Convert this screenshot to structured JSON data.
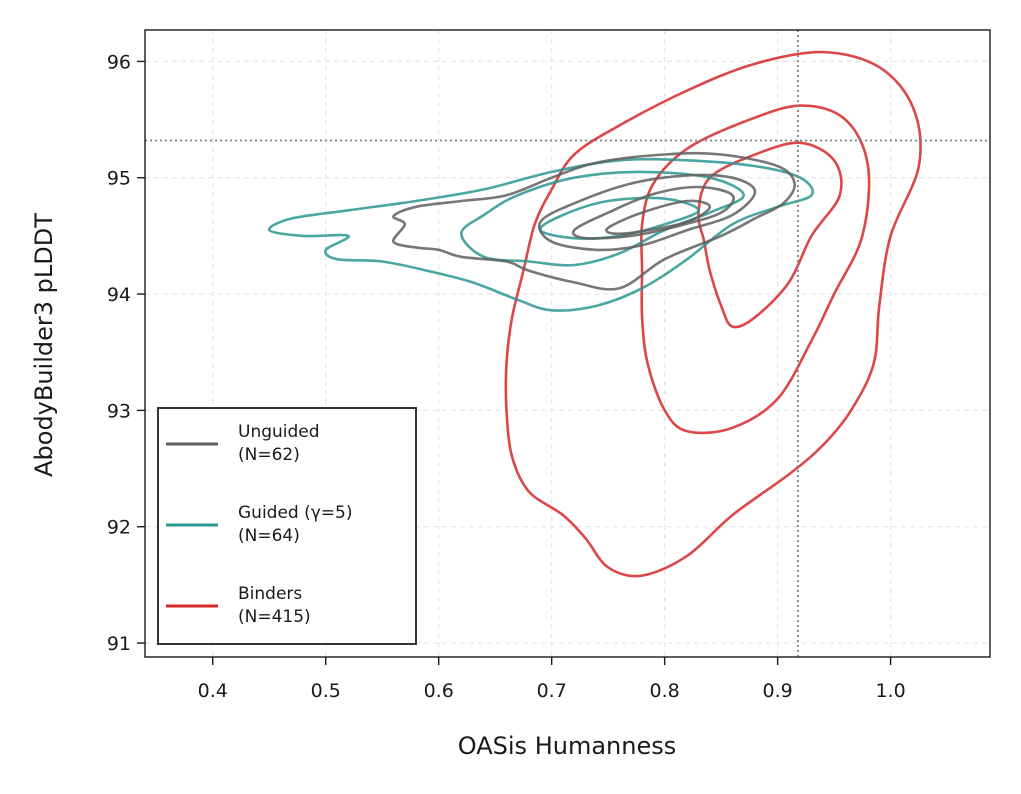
{
  "chart_data": {
    "type": "contour",
    "title": "",
    "xlabel": "OASis Humanness",
    "ylabel": "AbodyBuilder3 pLDDT",
    "xlim": [
      0.34,
      1.088
    ],
    "ylim": [
      90.88,
      96.27
    ],
    "xticks": [
      0.4,
      0.5,
      0.6,
      0.7,
      0.8,
      0.9,
      1.0
    ],
    "xtick_labels": [
      "0.4",
      "0.5",
      "0.6",
      "0.7",
      "0.8",
      "0.9",
      "1.0"
    ],
    "yticks": [
      91,
      92,
      93,
      94,
      95,
      96
    ],
    "ytick_labels": [
      "91",
      "92",
      "93",
      "94",
      "95",
      "96"
    ],
    "grid": true,
    "legend_position": "lower-left",
    "reference_lines": {
      "x": 0.918,
      "y": 95.32
    },
    "series": [
      {
        "name": "Unguided",
        "legend_lines": [
          "Unguided",
          "(N=62)"
        ],
        "color": "#5f5f5f",
        "contours": [
          [
            [
              0.56,
              94.67
            ],
            [
              0.58,
              94.75
            ],
            [
              0.62,
              94.8
            ],
            [
              0.66,
              94.85
            ],
            [
              0.7,
              95.0
            ],
            [
              0.74,
              95.13
            ],
            [
              0.8,
              95.2
            ],
            [
              0.85,
              95.2
            ],
            [
              0.9,
              95.1
            ],
            [
              0.915,
              94.95
            ],
            [
              0.905,
              94.78
            ],
            [
              0.88,
              94.65
            ],
            [
              0.85,
              94.5
            ],
            [
              0.8,
              94.3
            ],
            [
              0.76,
              94.05
            ],
            [
              0.72,
              94.1
            ],
            [
              0.68,
              94.2
            ],
            [
              0.66,
              94.28
            ],
            [
              0.62,
              94.32
            ],
            [
              0.6,
              94.38
            ],
            [
              0.58,
              94.4
            ],
            [
              0.56,
              94.45
            ],
            [
              0.57,
              94.6
            ]
          ],
          [
            [
              0.69,
              94.62
            ],
            [
              0.72,
              94.78
            ],
            [
              0.77,
              94.95
            ],
            [
              0.82,
              95.02
            ],
            [
              0.86,
              95.0
            ],
            [
              0.88,
              94.88
            ],
            [
              0.86,
              94.68
            ],
            [
              0.82,
              94.55
            ],
            [
              0.78,
              94.42
            ],
            [
              0.74,
              94.38
            ],
            [
              0.7,
              94.45
            ]
          ],
          [
            [
              0.72,
              94.55
            ],
            [
              0.75,
              94.7
            ],
            [
              0.79,
              94.86
            ],
            [
              0.83,
              94.92
            ],
            [
              0.86,
              94.85
            ],
            [
              0.85,
              94.7
            ],
            [
              0.81,
              94.58
            ],
            [
              0.77,
              94.5
            ],
            [
              0.73,
              94.48
            ]
          ],
          [
            [
              0.75,
              94.57
            ],
            [
              0.78,
              94.7
            ],
            [
              0.82,
              94.8
            ],
            [
              0.84,
              94.75
            ],
            [
              0.82,
              94.62
            ],
            [
              0.78,
              94.54
            ],
            [
              0.755,
              94.52
            ]
          ]
        ]
      },
      {
        "name": "Guided (γ=5)",
        "legend_lines": [
          "Guided (γ=5)",
          "(N=64)"
        ],
        "color": "#2c9692",
        "contours": [
          [
            [
              0.45,
              94.55
            ],
            [
              0.47,
              94.65
            ],
            [
              0.52,
              94.72
            ],
            [
              0.58,
              94.8
            ],
            [
              0.64,
              94.9
            ],
            [
              0.7,
              95.05
            ],
            [
              0.76,
              95.15
            ],
            [
              0.82,
              95.15
            ],
            [
              0.88,
              95.1
            ],
            [
              0.92,
              95.0
            ],
            [
              0.93,
              94.85
            ],
            [
              0.9,
              94.75
            ],
            [
              0.86,
              94.6
            ],
            [
              0.82,
              94.3
            ],
            [
              0.78,
              94.05
            ],
            [
              0.74,
              93.9
            ],
            [
              0.7,
              93.86
            ],
            [
              0.67,
              93.95
            ],
            [
              0.63,
              94.1
            ],
            [
              0.59,
              94.2
            ],
            [
              0.55,
              94.28
            ],
            [
              0.51,
              94.3
            ],
            [
              0.5,
              94.38
            ],
            [
              0.52,
              94.5
            ],
            [
              0.48,
              94.5
            ]
          ],
          [
            [
              0.62,
              94.52
            ],
            [
              0.64,
              94.68
            ],
            [
              0.67,
              94.85
            ],
            [
              0.72,
              95.0
            ],
            [
              0.78,
              95.05
            ],
            [
              0.84,
              95.0
            ],
            [
              0.87,
              94.85
            ],
            [
              0.84,
              94.7
            ],
            [
              0.8,
              94.55
            ],
            [
              0.76,
              94.35
            ],
            [
              0.72,
              94.25
            ],
            [
              0.68,
              94.28
            ],
            [
              0.64,
              94.32
            ]
          ],
          [
            [
              0.69,
              94.55
            ],
            [
              0.71,
              94.68
            ],
            [
              0.75,
              94.8
            ],
            [
              0.8,
              94.82
            ],
            [
              0.83,
              94.72
            ],
            [
              0.8,
              94.6
            ],
            [
              0.76,
              94.5
            ],
            [
              0.72,
              94.48
            ]
          ]
        ]
      },
      {
        "name": "Binders",
        "legend_lines": [
          "Binders",
          "(N=415)"
        ],
        "color": "#d62728",
        "contours": [
          [
            [
              0.7,
              94.9
            ],
            [
              0.72,
              95.2
            ],
            [
              0.76,
              95.45
            ],
            [
              0.82,
              95.75
            ],
            [
              0.88,
              95.98
            ],
            [
              0.94,
              96.08
            ],
            [
              0.99,
              95.95
            ],
            [
              1.02,
              95.6
            ],
            [
              1.025,
              95.1
            ],
            [
              1.0,
              94.5
            ],
            [
              0.99,
              93.9
            ],
            [
              0.985,
              93.4
            ],
            [
              0.965,
              93.0
            ],
            [
              0.94,
              92.7
            ],
            [
              0.91,
              92.45
            ],
            [
              0.86,
              92.1
            ],
            [
              0.82,
              91.75
            ],
            [
              0.78,
              91.58
            ],
            [
              0.75,
              91.65
            ],
            [
              0.73,
              91.9
            ],
            [
              0.71,
              92.1
            ],
            [
              0.68,
              92.3
            ],
            [
              0.665,
              92.6
            ],
            [
              0.66,
              93.0
            ],
            [
              0.66,
              93.4
            ],
            [
              0.665,
              93.8
            ],
            [
              0.675,
              94.2
            ],
            [
              0.685,
              94.6
            ]
          ],
          [
            [
              0.78,
              94.6
            ],
            [
              0.79,
              94.95
            ],
            [
              0.82,
              95.25
            ],
            [
              0.87,
              95.48
            ],
            [
              0.92,
              95.62
            ],
            [
              0.96,
              95.5
            ],
            [
              0.98,
              95.1
            ],
            [
              0.975,
              94.5
            ],
            [
              0.95,
              94.0
            ],
            [
              0.93,
              93.6
            ],
            [
              0.9,
              93.1
            ],
            [
              0.86,
              92.85
            ],
            [
              0.82,
              92.82
            ],
            [
              0.8,
              93.0
            ],
            [
              0.785,
              93.4
            ],
            [
              0.78,
              93.8
            ],
            [
              0.78,
              94.2
            ]
          ],
          [
            [
              0.83,
              94.7
            ],
            [
              0.84,
              95.0
            ],
            [
              0.88,
              95.2
            ],
            [
              0.92,
              95.3
            ],
            [
              0.95,
              95.15
            ],
            [
              0.955,
              94.85
            ],
            [
              0.93,
              94.5
            ],
            [
              0.91,
              94.1
            ],
            [
              0.88,
              93.8
            ],
            [
              0.86,
              93.72
            ],
            [
              0.85,
              93.9
            ],
            [
              0.84,
              94.2
            ],
            [
              0.835,
              94.45
            ]
          ]
        ]
      }
    ]
  }
}
